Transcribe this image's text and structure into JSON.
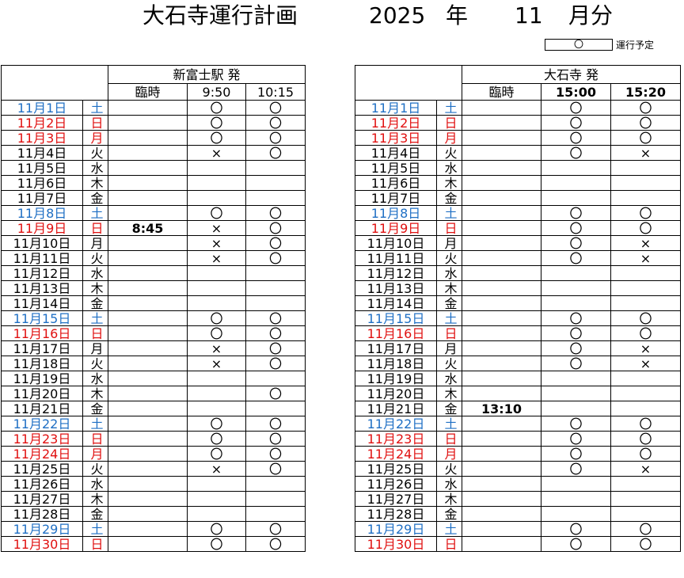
{
  "header": {
    "title": "大石寺運行計画",
    "year": "2025",
    "year_unit": "年",
    "month": "11",
    "month_unit": "月分"
  },
  "legend": {
    "symbol": "〇",
    "label": "運行予定"
  },
  "colors": {
    "saturday": "#1f6fc4",
    "sunday_holiday": "#e01010"
  },
  "left_table": {
    "station": "新富士駅 発",
    "columns": [
      "臨時",
      "9:50",
      "10:15"
    ],
    "rows": [
      {
        "date": "11月1日",
        "dow": "土",
        "type": "sat",
        "rinji": "",
        "c1": "〇",
        "c2": "〇"
      },
      {
        "date": "11月2日",
        "dow": "日",
        "type": "sun",
        "rinji": "",
        "c1": "〇",
        "c2": "〇"
      },
      {
        "date": "11月3日",
        "dow": "月",
        "type": "sun",
        "rinji": "",
        "c1": "〇",
        "c2": "〇"
      },
      {
        "date": "11月4日",
        "dow": "火",
        "type": "",
        "rinji": "",
        "c1": "×",
        "c2": "〇"
      },
      {
        "date": "11月5日",
        "dow": "水",
        "type": "",
        "rinji": "",
        "c1": "",
        "c2": ""
      },
      {
        "date": "11月6日",
        "dow": "木",
        "type": "",
        "rinji": "",
        "c1": "",
        "c2": ""
      },
      {
        "date": "11月7日",
        "dow": "金",
        "type": "",
        "rinji": "",
        "c1": "",
        "c2": ""
      },
      {
        "date": "11月8日",
        "dow": "土",
        "type": "sat",
        "rinji": "",
        "c1": "〇",
        "c2": "〇"
      },
      {
        "date": "11月9日",
        "dow": "日",
        "type": "sun",
        "rinji": "8:45",
        "c1": "×",
        "c2": "〇"
      },
      {
        "date": "11月10日",
        "dow": "月",
        "type": "",
        "rinji": "",
        "c1": "×",
        "c2": "〇"
      },
      {
        "date": "11月11日",
        "dow": "火",
        "type": "",
        "rinji": "",
        "c1": "×",
        "c2": "〇"
      },
      {
        "date": "11月12日",
        "dow": "水",
        "type": "",
        "rinji": "",
        "c1": "",
        "c2": ""
      },
      {
        "date": "11月13日",
        "dow": "木",
        "type": "",
        "rinji": "",
        "c1": "",
        "c2": ""
      },
      {
        "date": "11月14日",
        "dow": "金",
        "type": "",
        "rinji": "",
        "c1": "",
        "c2": ""
      },
      {
        "date": "11月15日",
        "dow": "土",
        "type": "sat",
        "rinji": "",
        "c1": "〇",
        "c2": "〇"
      },
      {
        "date": "11月16日",
        "dow": "日",
        "type": "sun",
        "rinji": "",
        "c1": "〇",
        "c2": "〇"
      },
      {
        "date": "11月17日",
        "dow": "月",
        "type": "",
        "rinji": "",
        "c1": "×",
        "c2": "〇"
      },
      {
        "date": "11月18日",
        "dow": "火",
        "type": "",
        "rinji": "",
        "c1": "×",
        "c2": "〇"
      },
      {
        "date": "11月19日",
        "dow": "水",
        "type": "",
        "rinji": "",
        "c1": "",
        "c2": ""
      },
      {
        "date": "11月20日",
        "dow": "木",
        "type": "",
        "rinji": "",
        "c1": "",
        "c2": "〇"
      },
      {
        "date": "11月21日",
        "dow": "金",
        "type": "",
        "rinji": "",
        "c1": "",
        "c2": ""
      },
      {
        "date": "11月22日",
        "dow": "土",
        "type": "sat",
        "rinji": "",
        "c1": "〇",
        "c2": "〇"
      },
      {
        "date": "11月23日",
        "dow": "日",
        "type": "sun",
        "rinji": "",
        "c1": "〇",
        "c2": "〇"
      },
      {
        "date": "11月24日",
        "dow": "月",
        "type": "sun",
        "rinji": "",
        "c1": "〇",
        "c2": "〇"
      },
      {
        "date": "11月25日",
        "dow": "火",
        "type": "",
        "rinji": "",
        "c1": "×",
        "c2": "〇"
      },
      {
        "date": "11月26日",
        "dow": "水",
        "type": "",
        "rinji": "",
        "c1": "",
        "c2": ""
      },
      {
        "date": "11月27日",
        "dow": "木",
        "type": "",
        "rinji": "",
        "c1": "",
        "c2": ""
      },
      {
        "date": "11月28日",
        "dow": "金",
        "type": "",
        "rinji": "",
        "c1": "",
        "c2": ""
      },
      {
        "date": "11月29日",
        "dow": "土",
        "type": "sat",
        "rinji": "",
        "c1": "〇",
        "c2": "〇"
      },
      {
        "date": "11月30日",
        "dow": "日",
        "type": "sun",
        "rinji": "",
        "c1": "〇",
        "c2": "〇"
      }
    ]
  },
  "right_table": {
    "station": "大石寺 発",
    "columns": [
      "臨時",
      "15:00",
      "15:20"
    ],
    "rows": [
      {
        "date": "11月1日",
        "dow": "土",
        "type": "sat",
        "rinji": "",
        "c1": "〇",
        "c2": "〇"
      },
      {
        "date": "11月2日",
        "dow": "日",
        "type": "sun",
        "rinji": "",
        "c1": "〇",
        "c2": "〇"
      },
      {
        "date": "11月3日",
        "dow": "月",
        "type": "sun",
        "rinji": "",
        "c1": "〇",
        "c2": "〇"
      },
      {
        "date": "11月4日",
        "dow": "火",
        "type": "",
        "rinji": "",
        "c1": "〇",
        "c2": "×"
      },
      {
        "date": "11月5日",
        "dow": "水",
        "type": "",
        "rinji": "",
        "c1": "",
        "c2": ""
      },
      {
        "date": "11月6日",
        "dow": "木",
        "type": "",
        "rinji": "",
        "c1": "",
        "c2": ""
      },
      {
        "date": "11月7日",
        "dow": "金",
        "type": "",
        "rinji": "",
        "c1": "",
        "c2": ""
      },
      {
        "date": "11月8日",
        "dow": "土",
        "type": "sat",
        "rinji": "",
        "c1": "〇",
        "c2": "〇"
      },
      {
        "date": "11月9日",
        "dow": "日",
        "type": "sun",
        "rinji": "",
        "c1": "〇",
        "c2": "〇"
      },
      {
        "date": "11月10日",
        "dow": "月",
        "type": "",
        "rinji": "",
        "c1": "〇",
        "c2": "×"
      },
      {
        "date": "11月11日",
        "dow": "火",
        "type": "",
        "rinji": "",
        "c1": "〇",
        "c2": "×"
      },
      {
        "date": "11月12日",
        "dow": "水",
        "type": "",
        "rinji": "",
        "c1": "",
        "c2": ""
      },
      {
        "date": "11月13日",
        "dow": "木",
        "type": "",
        "rinji": "",
        "c1": "",
        "c2": ""
      },
      {
        "date": "11月14日",
        "dow": "金",
        "type": "",
        "rinji": "",
        "c1": "",
        "c2": ""
      },
      {
        "date": "11月15日",
        "dow": "土",
        "type": "sat",
        "rinji": "",
        "c1": "〇",
        "c2": "〇"
      },
      {
        "date": "11月16日",
        "dow": "日",
        "type": "sun",
        "rinji": "",
        "c1": "〇",
        "c2": "〇"
      },
      {
        "date": "11月17日",
        "dow": "月",
        "type": "",
        "rinji": "",
        "c1": "〇",
        "c2": "×"
      },
      {
        "date": "11月18日",
        "dow": "火",
        "type": "",
        "rinji": "",
        "c1": "〇",
        "c2": "×"
      },
      {
        "date": "11月19日",
        "dow": "水",
        "type": "",
        "rinji": "",
        "c1": "",
        "c2": ""
      },
      {
        "date": "11月20日",
        "dow": "木",
        "type": "",
        "rinji": "",
        "c1": "",
        "c2": ""
      },
      {
        "date": "11月21日",
        "dow": "金",
        "type": "",
        "rinji": "13:10",
        "c1": "",
        "c2": ""
      },
      {
        "date": "11月22日",
        "dow": "土",
        "type": "sat",
        "rinji": "",
        "c1": "〇",
        "c2": "〇"
      },
      {
        "date": "11月23日",
        "dow": "日",
        "type": "sun",
        "rinji": "",
        "c1": "〇",
        "c2": "〇"
      },
      {
        "date": "11月24日",
        "dow": "月",
        "type": "sun",
        "rinji": "",
        "c1": "〇",
        "c2": "〇"
      },
      {
        "date": "11月25日",
        "dow": "火",
        "type": "",
        "rinji": "",
        "c1": "〇",
        "c2": "×"
      },
      {
        "date": "11月26日",
        "dow": "水",
        "type": "",
        "rinji": "",
        "c1": "",
        "c2": ""
      },
      {
        "date": "11月27日",
        "dow": "木",
        "type": "",
        "rinji": "",
        "c1": "",
        "c2": ""
      },
      {
        "date": "11月28日",
        "dow": "金",
        "type": "",
        "rinji": "",
        "c1": "",
        "c2": ""
      },
      {
        "date": "11月29日",
        "dow": "土",
        "type": "sat",
        "rinji": "",
        "c1": "〇",
        "c2": "〇"
      },
      {
        "date": "11月30日",
        "dow": "日",
        "type": "sun",
        "rinji": "",
        "c1": "〇",
        "c2": "〇"
      }
    ]
  }
}
